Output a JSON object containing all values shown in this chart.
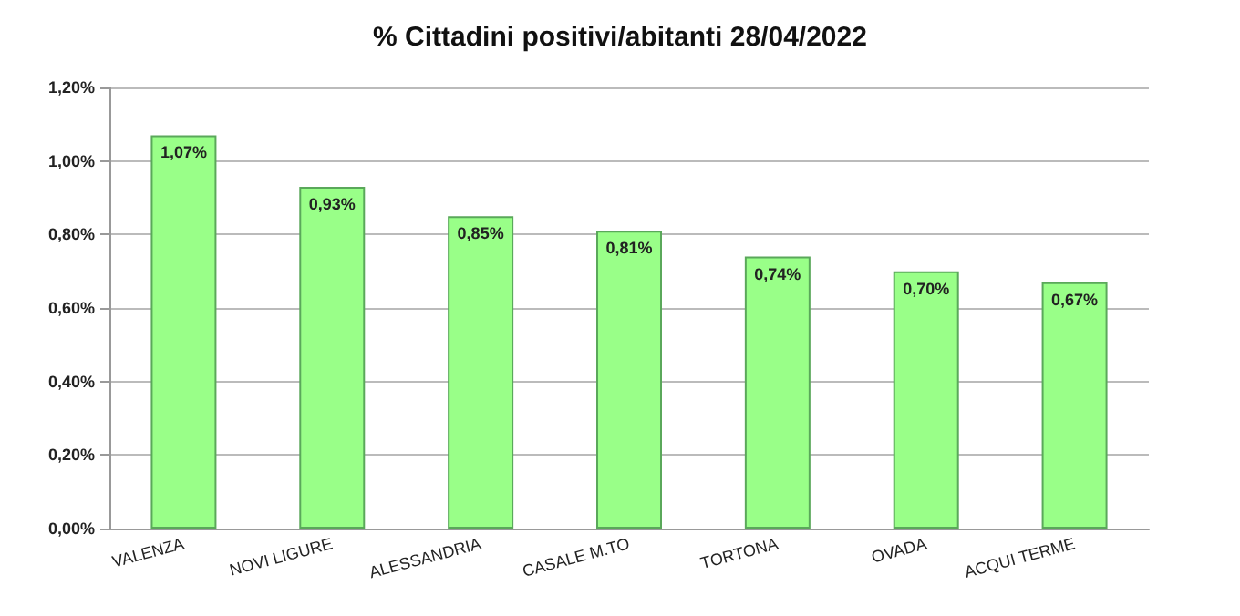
{
  "chart_data": {
    "type": "bar",
    "title": "% Cittadini positivi/abitanti 28/04/2022",
    "categories": [
      "VALENZA",
      "NOVI LIGURE",
      "ALESSANDRIA",
      "CASALE M.TO",
      "TORTONA",
      "OVADA",
      "ACQUI TERME"
    ],
    "values": [
      1.07,
      0.93,
      0.85,
      0.81,
      0.74,
      0.7,
      0.67
    ],
    "value_labels": [
      "1,07%",
      "0,93%",
      "0,85%",
      "0,81%",
      "0,74%",
      "0,70%",
      "0,67%"
    ],
    "color": "#99ff88",
    "ylim": [
      0,
      1.2
    ],
    "yticks": [
      {
        "value": 0,
        "label": "0,00%"
      },
      {
        "value": 0.2,
        "label": "0,20%"
      },
      {
        "value": 0.4,
        "label": "0,40%"
      },
      {
        "value": 0.6,
        "label": "0,60%"
      },
      {
        "value": 0.8,
        "label": "0,80%"
      },
      {
        "value": 1.0,
        "label": "1,00%"
      },
      {
        "value": 1.2,
        "label": "1,20%"
      }
    ],
    "grid": "y"
  }
}
